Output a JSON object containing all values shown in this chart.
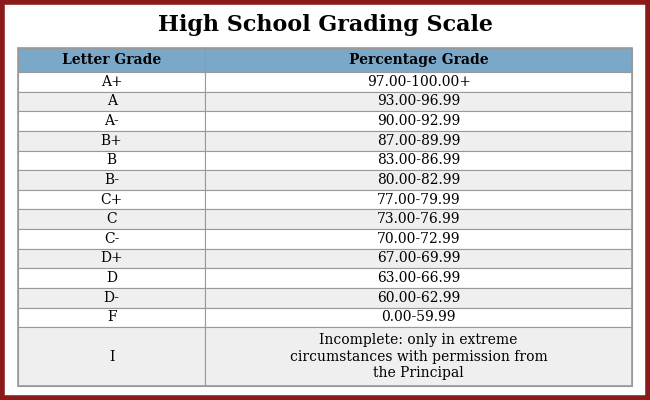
{
  "title": "High School Grading Scale",
  "col_headers": [
    "Letter Grade",
    "Percentage Grade"
  ],
  "rows": [
    [
      "A+",
      "97.00-100.00+"
    ],
    [
      "A",
      "93.00-96.99"
    ],
    [
      "A-",
      "90.00-92.99"
    ],
    [
      "B+",
      "87.00-89.99"
    ],
    [
      "B",
      "83.00-86.99"
    ],
    [
      "B-",
      "80.00-82.99"
    ],
    [
      "C+",
      "77.00-79.99"
    ],
    [
      "C",
      "73.00-76.99"
    ],
    [
      "C-",
      "70.00-72.99"
    ],
    [
      "D+",
      "67.00-69.99"
    ],
    [
      "D",
      "63.00-66.99"
    ],
    [
      "D-",
      "60.00-62.99"
    ],
    [
      "F",
      "0.00-59.99"
    ],
    [
      "I",
      "Incomplete: only in extreme\ncircumstances with permission from\nthe Principal"
    ]
  ],
  "header_bg": "#7ba7c9",
  "row_bg_white": "#ffffff",
  "row_bg_gray": "#efefef",
  "border_color": "#999999",
  "outer_border_color": "#8b1a1a",
  "title_fontsize": 16,
  "header_fontsize": 10,
  "row_fontsize": 10,
  "outer_bg": "#ffffff",
  "col_split": 0.305
}
